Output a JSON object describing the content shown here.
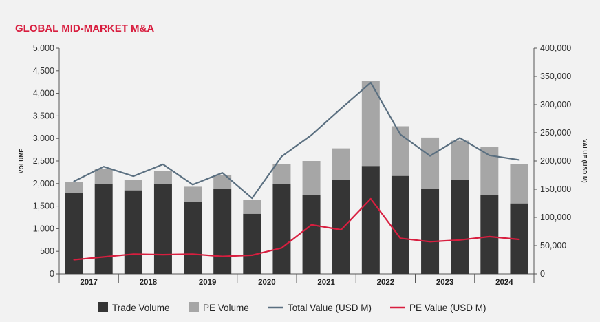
{
  "title": "GLOBAL MID-MARKET M&A",
  "chart_data": {
    "type": "bar",
    "stacked": true,
    "title": "GLOBAL MID-MARKET M&A",
    "ylabel": "VOLUME",
    "y2label": "VALUE (USD M)",
    "ylim": [
      0,
      5000
    ],
    "y2lim": [
      0,
      400000
    ],
    "y_ticks": [
      "0",
      "500",
      "1,000",
      "1,500",
      "2,000",
      "2,500",
      "3,000",
      "3,500",
      "4,000",
      "4,500",
      "5,000"
    ],
    "y2_ticks": [
      "0",
      "50,000",
      "100,000",
      "150,000",
      "200,000",
      "250,000",
      "300,000",
      "350,000",
      "400,000"
    ],
    "years": [
      "2017",
      "2018",
      "2019",
      "2020",
      "2021",
      "2022",
      "2023",
      "2024"
    ],
    "periods_per_year": 2,
    "legend_position": "bottom",
    "series": [
      {
        "name": "Trade Volume",
        "kind": "bar",
        "axis": "left",
        "color": "#353535",
        "values": [
          1790,
          2000,
          1850,
          2000,
          1590,
          1880,
          1330,
          2000,
          1750,
          2080,
          2390,
          2170,
          1880,
          2080,
          1750,
          1560
        ]
      },
      {
        "name": "PE Volume",
        "kind": "bar",
        "axis": "left",
        "color": "#a6a6a6",
        "values": [
          250,
          330,
          230,
          280,
          340,
          300,
          310,
          430,
          750,
          700,
          1890,
          1100,
          1140,
          870,
          1060,
          870
        ]
      },
      {
        "name": "Total Value (USD M)",
        "kind": "line",
        "axis": "right",
        "color": "#5a6f80",
        "values": [
          164000,
          190000,
          173000,
          194000,
          158000,
          179000,
          134000,
          208000,
          246000,
          293000,
          339000,
          247000,
          209000,
          241000,
          210000,
          202000
        ]
      },
      {
        "name": "PE Value (USD M)",
        "kind": "line",
        "axis": "right",
        "color": "#d81e3f",
        "values": [
          25000,
          30000,
          35000,
          34000,
          35000,
          31000,
          33000,
          46000,
          87000,
          78000,
          133000,
          63000,
          57000,
          60000,
          66000,
          61000
        ]
      }
    ]
  }
}
